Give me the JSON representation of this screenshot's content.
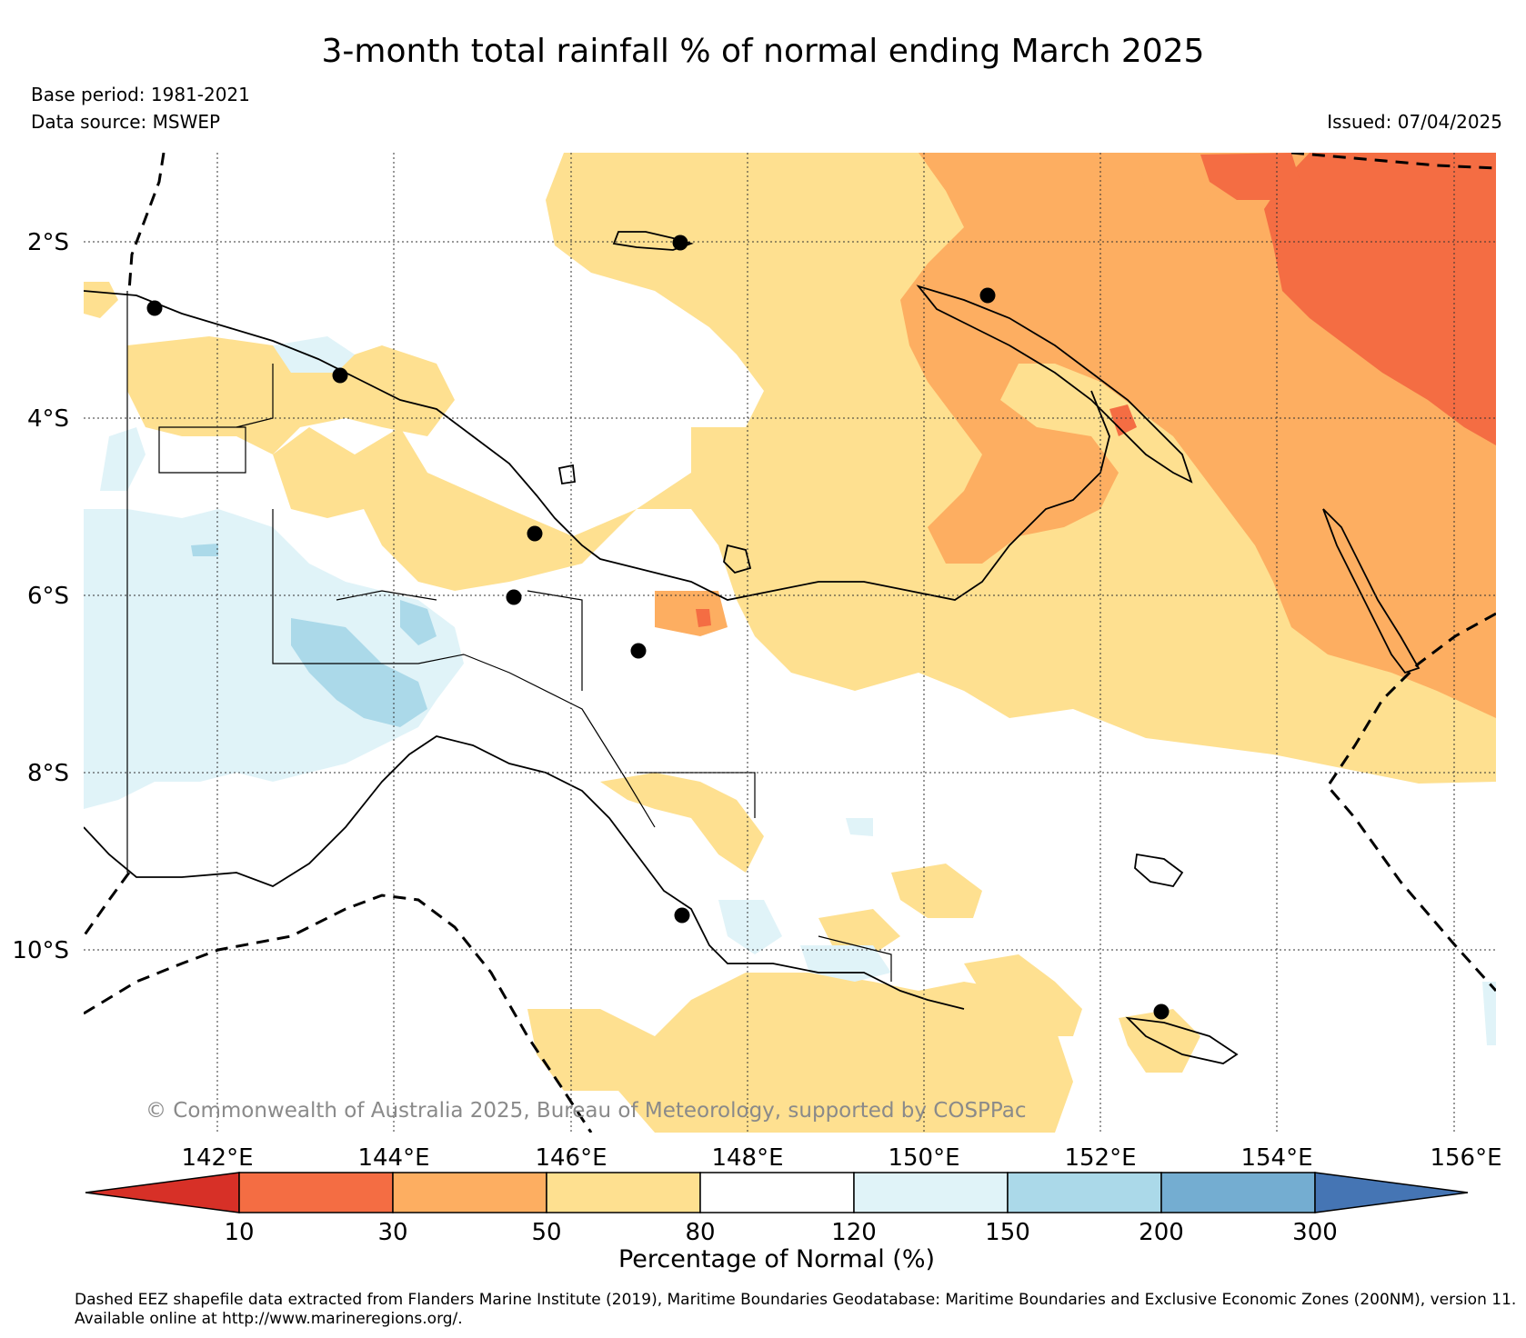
{
  "header": {
    "title": "3-month total rainfall % of normal ending March 2025",
    "base_period": "Base period: 1981-2021",
    "data_source": "Data source: MSWEP",
    "issued": "Issued: 07/04/2025"
  },
  "map": {
    "lat_ticks": [
      "2°S",
      "4°S",
      "6°S",
      "8°S",
      "10°S"
    ],
    "lon_ticks": [
      "142°E",
      "144°E",
      "146°E",
      "148°E",
      "150°E",
      "152°E",
      "154°E",
      "156°E"
    ],
    "copyright": "© Commonwealth of Australia 2025, Bureau of Meteorology, supported by COSPPac",
    "colors": {
      "c_lt10": "#d73027",
      "c_10_30": "#f46d43",
      "c_30_50": "#fdae61",
      "c_50_80": "#fee090",
      "c_80_120": "#ffffff",
      "c_120_150": "#e0f3f8",
      "c_150_200": "#abd9e9",
      "c_200_300": "#74add1",
      "c_gt300": "#4575b4"
    }
  },
  "colorbar": {
    "tick_labels": [
      "10",
      "30",
      "50",
      "80",
      "120",
      "150",
      "200",
      "300"
    ],
    "title": "Percentage of Normal (%)"
  },
  "footnote": "Dashed EEZ shapefile data extracted from Flanders Marine Institute (2019), Maritime Boundaries Geodatabase: Maritime Boundaries and Exclusive Economic Zones (200NM), version 11. Available online at http://www.marineregions.org/."
}
